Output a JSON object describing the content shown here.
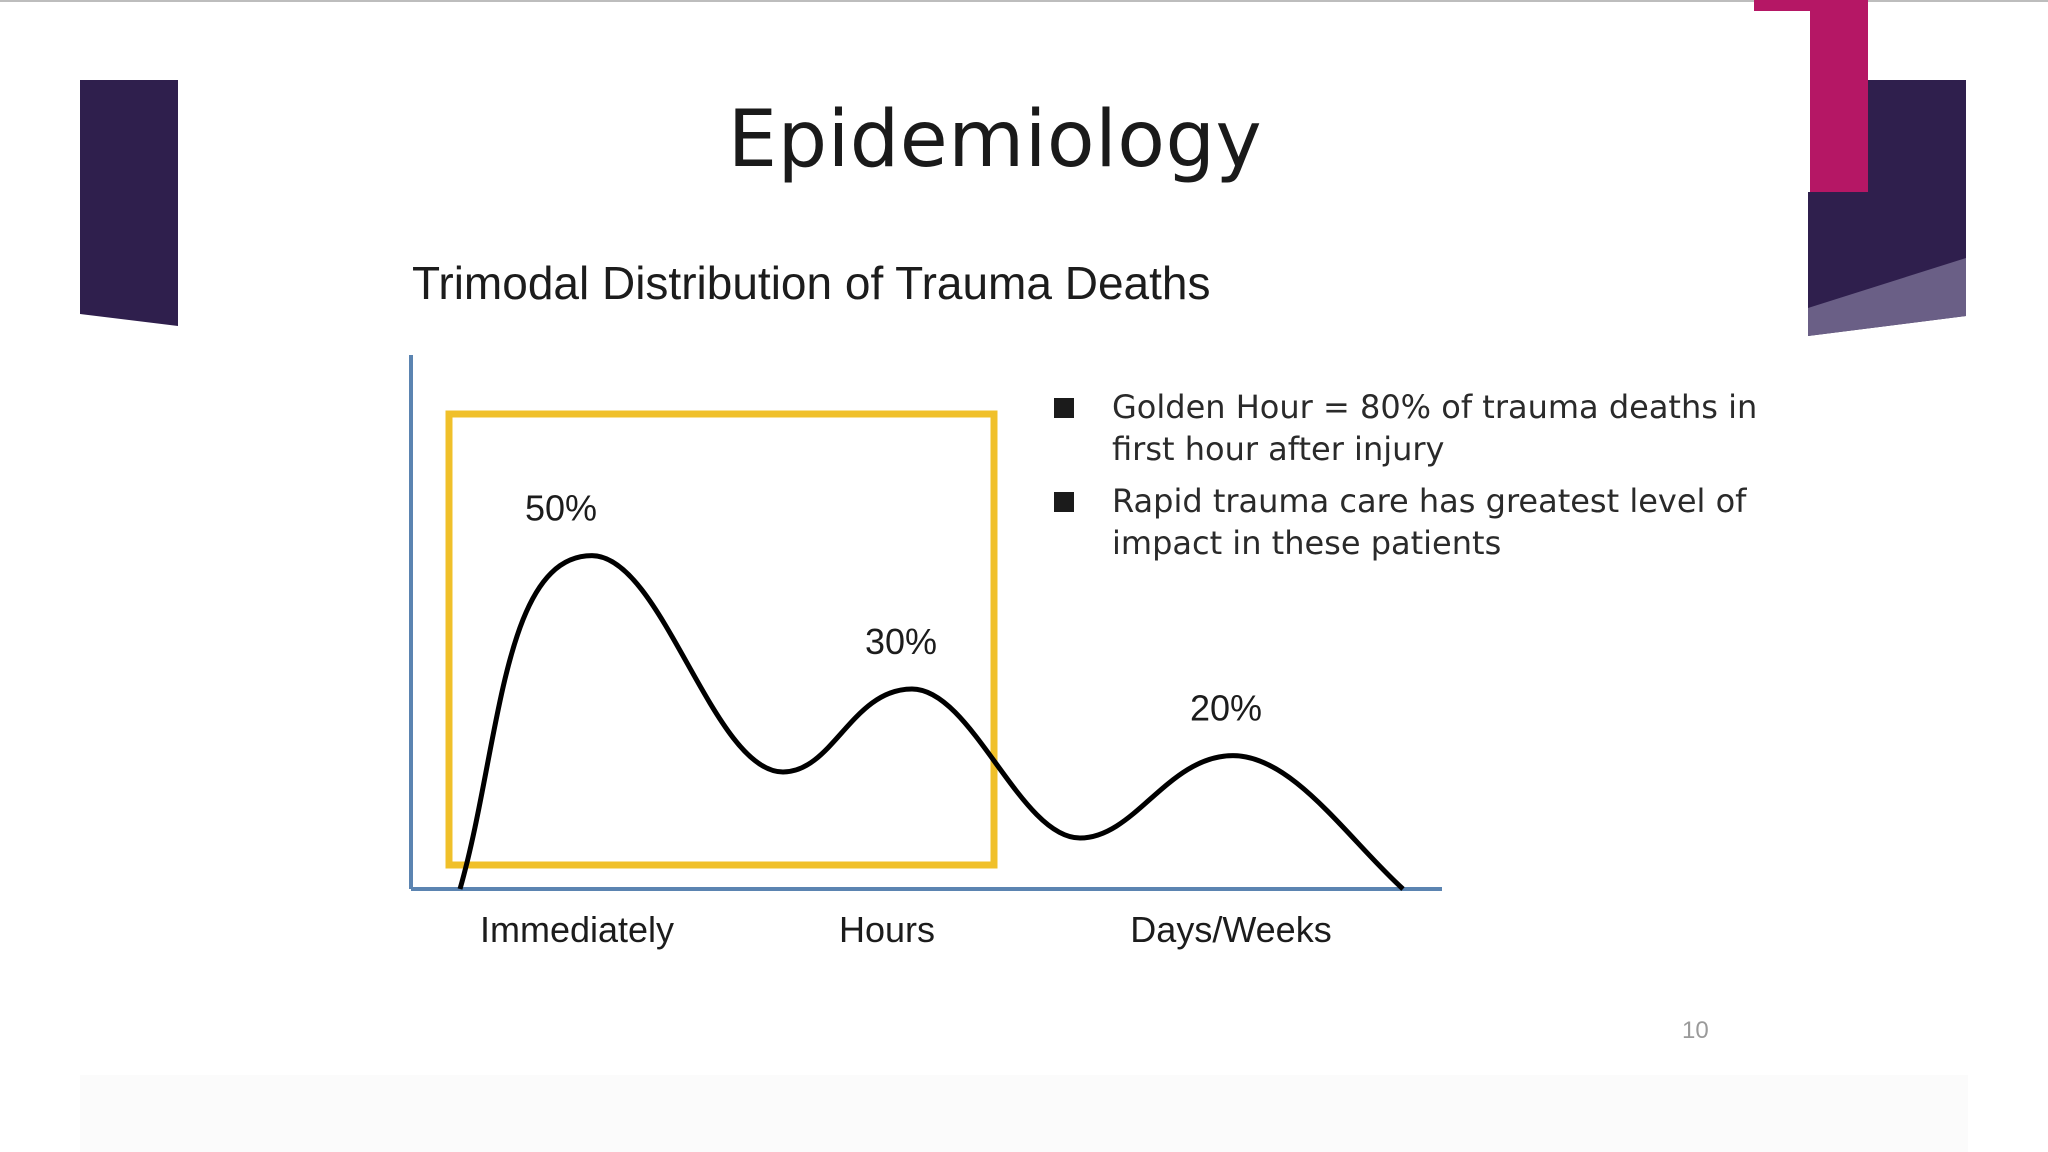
{
  "slide": {
    "title": "Epidemiology",
    "page_number": "10",
    "colors": {
      "dark_purple": "#2f1f4d",
      "magenta": "#b51765",
      "lavender": "#6a5f86",
      "highlight_box": "#f0c02a",
      "axis": "#5b84b1",
      "curve": "#000000"
    }
  },
  "bullets": [
    {
      "text": "Golden Hour = 80% of trauma deaths in first hour after injury"
    },
    {
      "text": "Rapid trauma care has greatest level of impact in these patients"
    }
  ],
  "chart_data": {
    "type": "line",
    "title": "Trimodal Distribution of Trauma Deaths",
    "categories": [
      "Immediately",
      "Hours",
      "Days/Weeks"
    ],
    "peaks": [
      {
        "category": "Immediately",
        "label": "50%",
        "value": 50
      },
      {
        "category": "Hours",
        "label": "30%",
        "value": 30
      },
      {
        "category": "Days/Weeks",
        "label": "20%",
        "value": 20
      }
    ],
    "highlight_region": {
      "from": "Immediately",
      "to": "Hours"
    },
    "grid": false
  }
}
